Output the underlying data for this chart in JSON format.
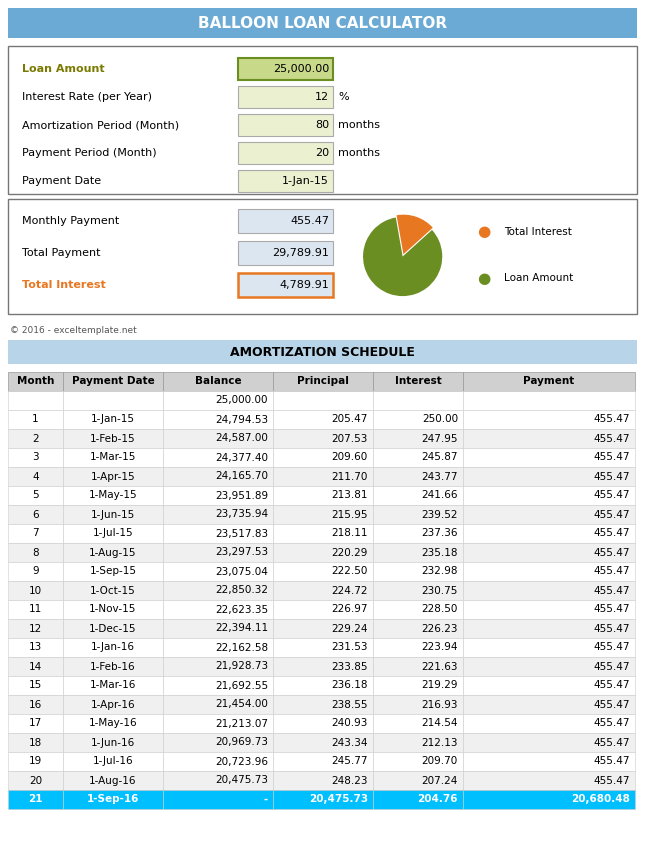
{
  "title": "BALLOON LOAN CALCULATOR",
  "title_bg": "#6aaad4",
  "title_color": "white",
  "loan_amount_label": "Loan Amount",
  "loan_amount_value": "25,000.00",
  "loan_amount_label_color": "#7a7a00",
  "input_fields": [
    {
      "label": "Interest Rate (per Year)",
      "value": "12",
      "unit": "%"
    },
    {
      "label": "Amortization Period (Month)",
      "value": "80",
      "unit": "months"
    },
    {
      "label": "Payment Period (Month)",
      "value": "20",
      "unit": "months"
    },
    {
      "label": "Payment Date",
      "value": "1-Jan-15",
      "unit": ""
    }
  ],
  "monthly_payment_label": "Monthly Payment",
  "monthly_payment_value": "455.47",
  "total_payment_label": "Total Payment",
  "total_payment_value": "29,789.91",
  "total_interest_label": "Total Interest",
  "total_interest_value": "4,789.91",
  "total_interest_color": "#e87722",
  "pie_colors": [
    "#e87722",
    "#6b8e23"
  ],
  "pie_labels": [
    "Total Interest",
    "Loan Amount"
  ],
  "pie_values": [
    4789.91,
    25000.0
  ],
  "copyright": "© 2016 - exceltemplate.net",
  "schedule_title": "AMORTIZATION SCHEDULE",
  "schedule_title_bg": "#b8d4e8",
  "col_headers": [
    "Month",
    "Payment Date",
    "Balance",
    "Principal",
    "Interest",
    "Payment"
  ],
  "header_bg": "#d0d0d0",
  "initial_balance": "25,000.00",
  "rows": [
    [
      1,
      "1-Jan-15",
      "24,794.53",
      "205.47",
      "250.00",
      "455.47"
    ],
    [
      2,
      "1-Feb-15",
      "24,587.00",
      "207.53",
      "247.95",
      "455.47"
    ],
    [
      3,
      "1-Mar-15",
      "24,377.40",
      "209.60",
      "245.87",
      "455.47"
    ],
    [
      4,
      "1-Apr-15",
      "24,165.70",
      "211.70",
      "243.77",
      "455.47"
    ],
    [
      5,
      "1-May-15",
      "23,951.89",
      "213.81",
      "241.66",
      "455.47"
    ],
    [
      6,
      "1-Jun-15",
      "23,735.94",
      "215.95",
      "239.52",
      "455.47"
    ],
    [
      7,
      "1-Jul-15",
      "23,517.83",
      "218.11",
      "237.36",
      "455.47"
    ],
    [
      8,
      "1-Aug-15",
      "23,297.53",
      "220.29",
      "235.18",
      "455.47"
    ],
    [
      9,
      "1-Sep-15",
      "23,075.04",
      "222.50",
      "232.98",
      "455.47"
    ],
    [
      10,
      "1-Oct-15",
      "22,850.32",
      "224.72",
      "230.75",
      "455.47"
    ],
    [
      11,
      "1-Nov-15",
      "22,623.35",
      "226.97",
      "228.50",
      "455.47"
    ],
    [
      12,
      "1-Dec-15",
      "22,394.11",
      "229.24",
      "226.23",
      "455.47"
    ],
    [
      13,
      "1-Jan-16",
      "22,162.58",
      "231.53",
      "223.94",
      "455.47"
    ],
    [
      14,
      "1-Feb-16",
      "21,928.73",
      "233.85",
      "221.63",
      "455.47"
    ],
    [
      15,
      "1-Mar-16",
      "21,692.55",
      "236.18",
      "219.29",
      "455.47"
    ],
    [
      16,
      "1-Apr-16",
      "21,454.00",
      "238.55",
      "216.93",
      "455.47"
    ],
    [
      17,
      "1-May-16",
      "21,213.07",
      "240.93",
      "214.54",
      "455.47"
    ],
    [
      18,
      "1-Jun-16",
      "20,969.73",
      "243.34",
      "212.13",
      "455.47"
    ],
    [
      19,
      "1-Jul-16",
      "20,723.96",
      "245.77",
      "209.70",
      "455.47"
    ],
    [
      20,
      "1-Aug-16",
      "20,475.73",
      "248.23",
      "207.24",
      "455.47"
    ],
    [
      21,
      "1-Sep-16",
      "-",
      "20,475.73",
      "204.76",
      "20,680.48"
    ]
  ],
  "last_row_bg": "#00bfff",
  "last_row_color": "white",
  "even_row_bg": "#ffffff",
  "odd_row_bg": "#f0f0f0",
  "input_box_bg_loan": "#c8d98a",
  "input_box_bg_others": "#eaf0d0",
  "output_box_bg": "#dce6f1",
  "border_color": "#888888",
  "loan_amount_box_border": "#6b8e23"
}
